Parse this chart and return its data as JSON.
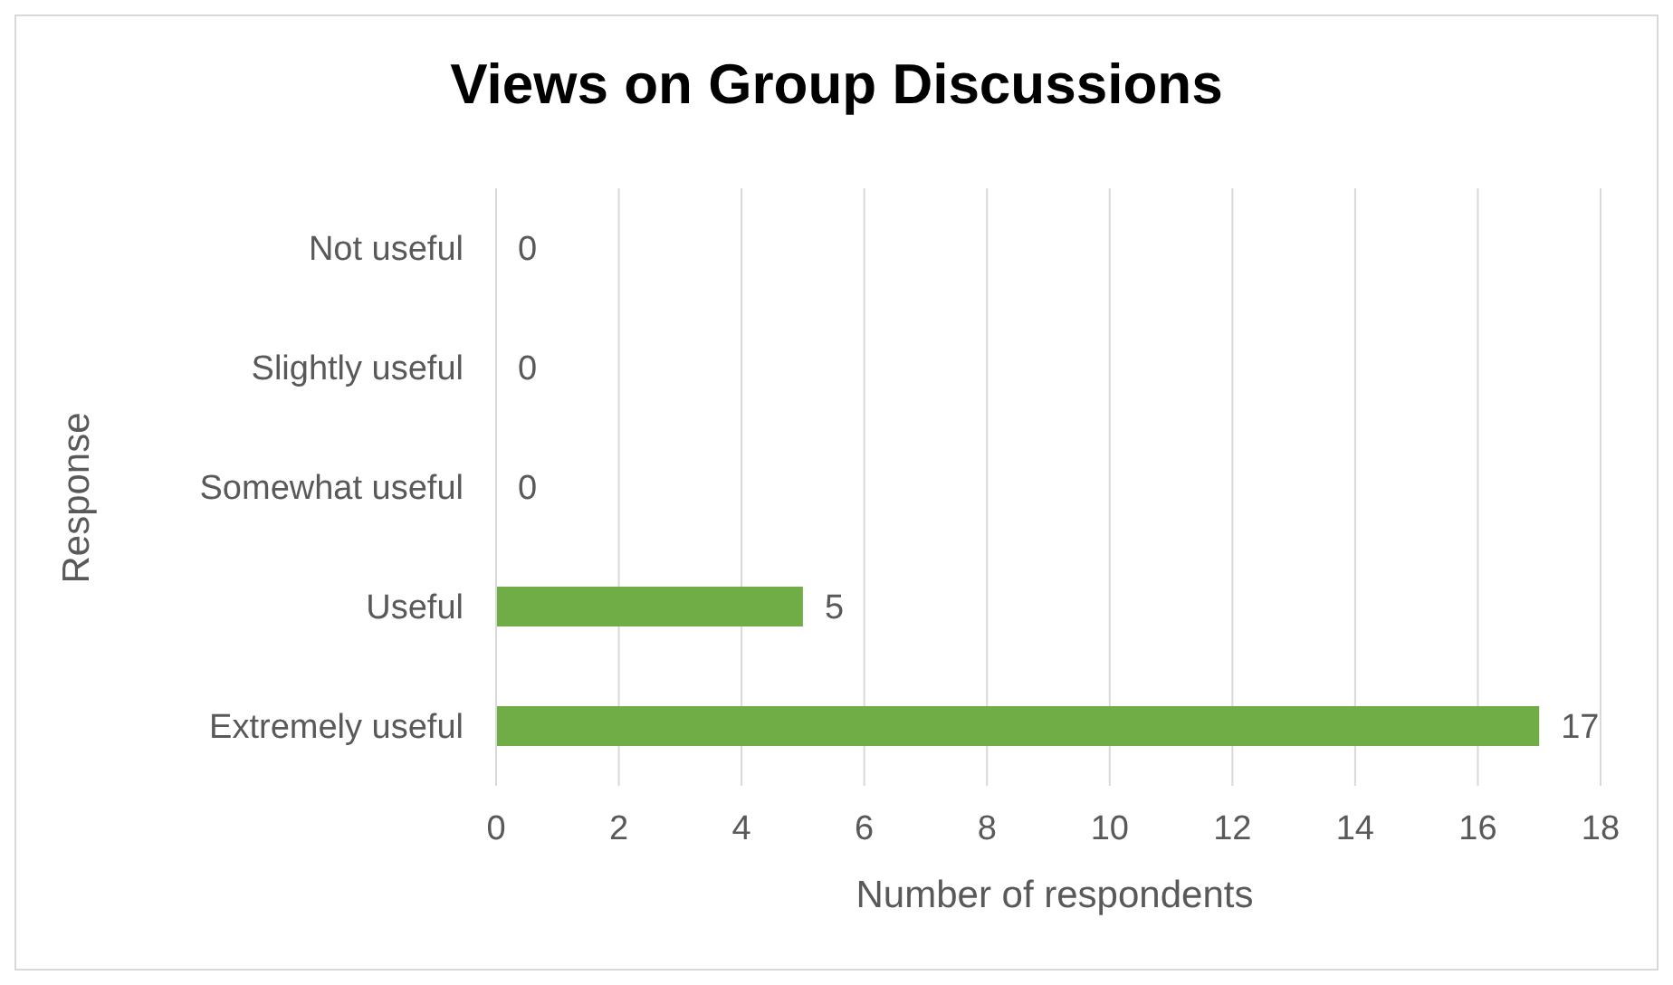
{
  "chart_data": {
    "type": "bar",
    "orientation": "horizontal",
    "title": "Views on Group Discussions",
    "xlabel": "Number of respondents",
    "ylabel": "Response",
    "categories": [
      "Not useful",
      "Slightly useful",
      "Somewhat useful",
      "Useful",
      "Extremely useful"
    ],
    "values": [
      0,
      0,
      0,
      5,
      17
    ],
    "color": "#70ad47",
    "xlim": [
      0,
      18
    ],
    "xticks": [
      0,
      2,
      4,
      6,
      8,
      10,
      12,
      14,
      16,
      18
    ],
    "grid": "x",
    "data_labels": true
  }
}
